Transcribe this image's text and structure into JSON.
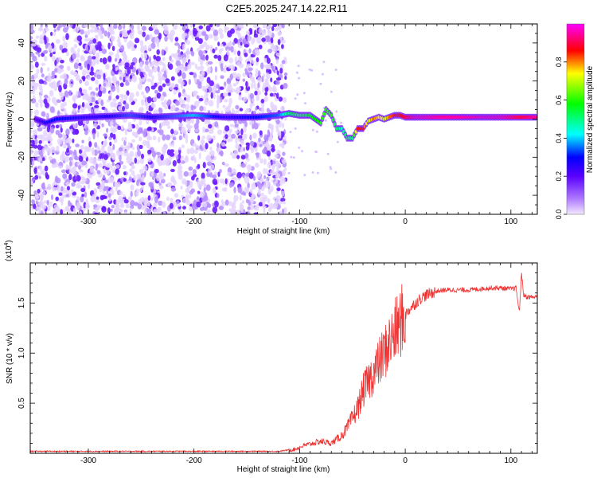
{
  "title": "C2E5.2025.247.14.22.R11",
  "chart_data": [
    {
      "type": "heatmap",
      "xlabel": "Height of straight line (km)",
      "ylabel": "Frequency (Hz)",
      "xlim": [
        -355,
        125
      ],
      "ylim": [
        -50,
        50
      ],
      "xticks": [
        -300,
        -200,
        -100,
        0,
        100
      ],
      "yticks": [
        -40,
        -20,
        0,
        20,
        40
      ],
      "colorbar": {
        "label": "Normalized spectral amplitude",
        "range": [
          0.0,
          1.0
        ],
        "ticks": [
          0.0,
          0.2,
          0.4,
          0.6,
          0.8
        ],
        "colormap": [
          "#ff00ff",
          "#ff0000",
          "#ffff00",
          "#00ff00",
          "#00ffff",
          "#0000ff",
          "#6600ff",
          "#e6ccff"
        ]
      },
      "noise_region_km": [
        -355,
        -113
      ],
      "signal_trace": [
        {
          "x": -350,
          "freq": 0,
          "amp": 0.2
        },
        {
          "x": -340,
          "freq": -2,
          "amp": 0.3
        },
        {
          "x": -330,
          "freq": 0,
          "amp": 0.3
        },
        {
          "x": -300,
          "freq": 1,
          "amp": 0.25
        },
        {
          "x": -260,
          "freq": 2,
          "amp": 0.35
        },
        {
          "x": -240,
          "freq": 1,
          "amp": 0.3
        },
        {
          "x": -200,
          "freq": 2,
          "amp": 0.4
        },
        {
          "x": -170,
          "freq": 1,
          "amp": 0.25
        },
        {
          "x": -140,
          "freq": 1,
          "amp": 0.3
        },
        {
          "x": -120,
          "freq": 2,
          "amp": 0.35
        },
        {
          "x": -110,
          "freq": 3,
          "amp": 0.5
        },
        {
          "x": -100,
          "freq": 2,
          "amp": 0.55
        },
        {
          "x": -90,
          "freq": 2,
          "amp": 0.55
        },
        {
          "x": -80,
          "freq": -2,
          "amp": 0.6
        },
        {
          "x": -75,
          "freq": 5,
          "amp": 0.6
        },
        {
          "x": -70,
          "freq": 2,
          "amp": 0.6
        },
        {
          "x": -65,
          "freq": -5,
          "amp": 0.5
        },
        {
          "x": -60,
          "freq": -5,
          "amp": 0.45
        },
        {
          "x": -55,
          "freq": -10,
          "amp": 0.55
        },
        {
          "x": -50,
          "freq": -10,
          "amp": 0.5
        },
        {
          "x": -45,
          "freq": -5,
          "amp": 0.85
        },
        {
          "x": -40,
          "freq": -5,
          "amp": 0.85
        },
        {
          "x": -35,
          "freq": -1,
          "amp": 0.7
        },
        {
          "x": -30,
          "freq": 0,
          "amp": 0.8
        },
        {
          "x": -25,
          "freq": 1,
          "amp": 0.75
        },
        {
          "x": -20,
          "freq": 0,
          "amp": 0.7
        },
        {
          "x": -15,
          "freq": 1,
          "amp": 0.8
        },
        {
          "x": -10,
          "freq": 2,
          "amp": 0.85
        },
        {
          "x": -5,
          "freq": 2,
          "amp": 0.85
        },
        {
          "x": 0,
          "freq": 1,
          "amp": 0.9
        },
        {
          "x": 10,
          "freq": 1,
          "amp": 0.95
        },
        {
          "x": 30,
          "freq": 1,
          "amp": 0.95
        },
        {
          "x": 50,
          "freq": 1,
          "amp": 0.95
        },
        {
          "x": 70,
          "freq": 1,
          "amp": 0.95
        },
        {
          "x": 90,
          "freq": 1,
          "amp": 0.95
        },
        {
          "x": 110,
          "freq": 1,
          "amp": 0.9
        },
        {
          "x": 125,
          "freq": 1,
          "amp": 0.95
        }
      ]
    },
    {
      "type": "line",
      "xlabel": "Height of straight line (km)",
      "ylabel": "SNR (10 * v/v)",
      "multiplier": "(x10",
      "multiplier_exp": "4",
      "xlim": [
        -355,
        125
      ],
      "ylim": [
        0,
        1.9
      ],
      "xticks": [
        -300,
        -200,
        -100,
        0,
        100
      ],
      "yticks": [
        0.5,
        1.0,
        1.5
      ],
      "ytick_labels": [
        "0.5",
        "1.0",
        "1.5"
      ],
      "color": "#ee3333",
      "series": [
        {
          "name": "SNR",
          "x": [
            -355,
            -300,
            -200,
            -120,
            -105,
            -95,
            -80,
            -70,
            -60,
            -55,
            -50,
            -45,
            -40,
            -35,
            -30,
            -25,
            -20,
            -15,
            -10,
            -5,
            0,
            5,
            10,
            15,
            20,
            25,
            30,
            40,
            50,
            60,
            70,
            80,
            90,
            100,
            105,
            108,
            110,
            112,
            115,
            125
          ],
          "y": [
            0.02,
            0.02,
            0.02,
            0.02,
            0.04,
            0.08,
            0.12,
            0.1,
            0.18,
            0.25,
            0.35,
            0.45,
            0.62,
            0.72,
            0.8,
            0.9,
            1.0,
            1.1,
            1.2,
            1.3,
            1.38,
            1.45,
            1.5,
            1.55,
            1.58,
            1.6,
            1.62,
            1.63,
            1.63,
            1.63,
            1.64,
            1.65,
            1.65,
            1.64,
            1.65,
            1.4,
            1.8,
            1.58,
            1.56,
            1.56
          ]
        }
      ]
    }
  ]
}
